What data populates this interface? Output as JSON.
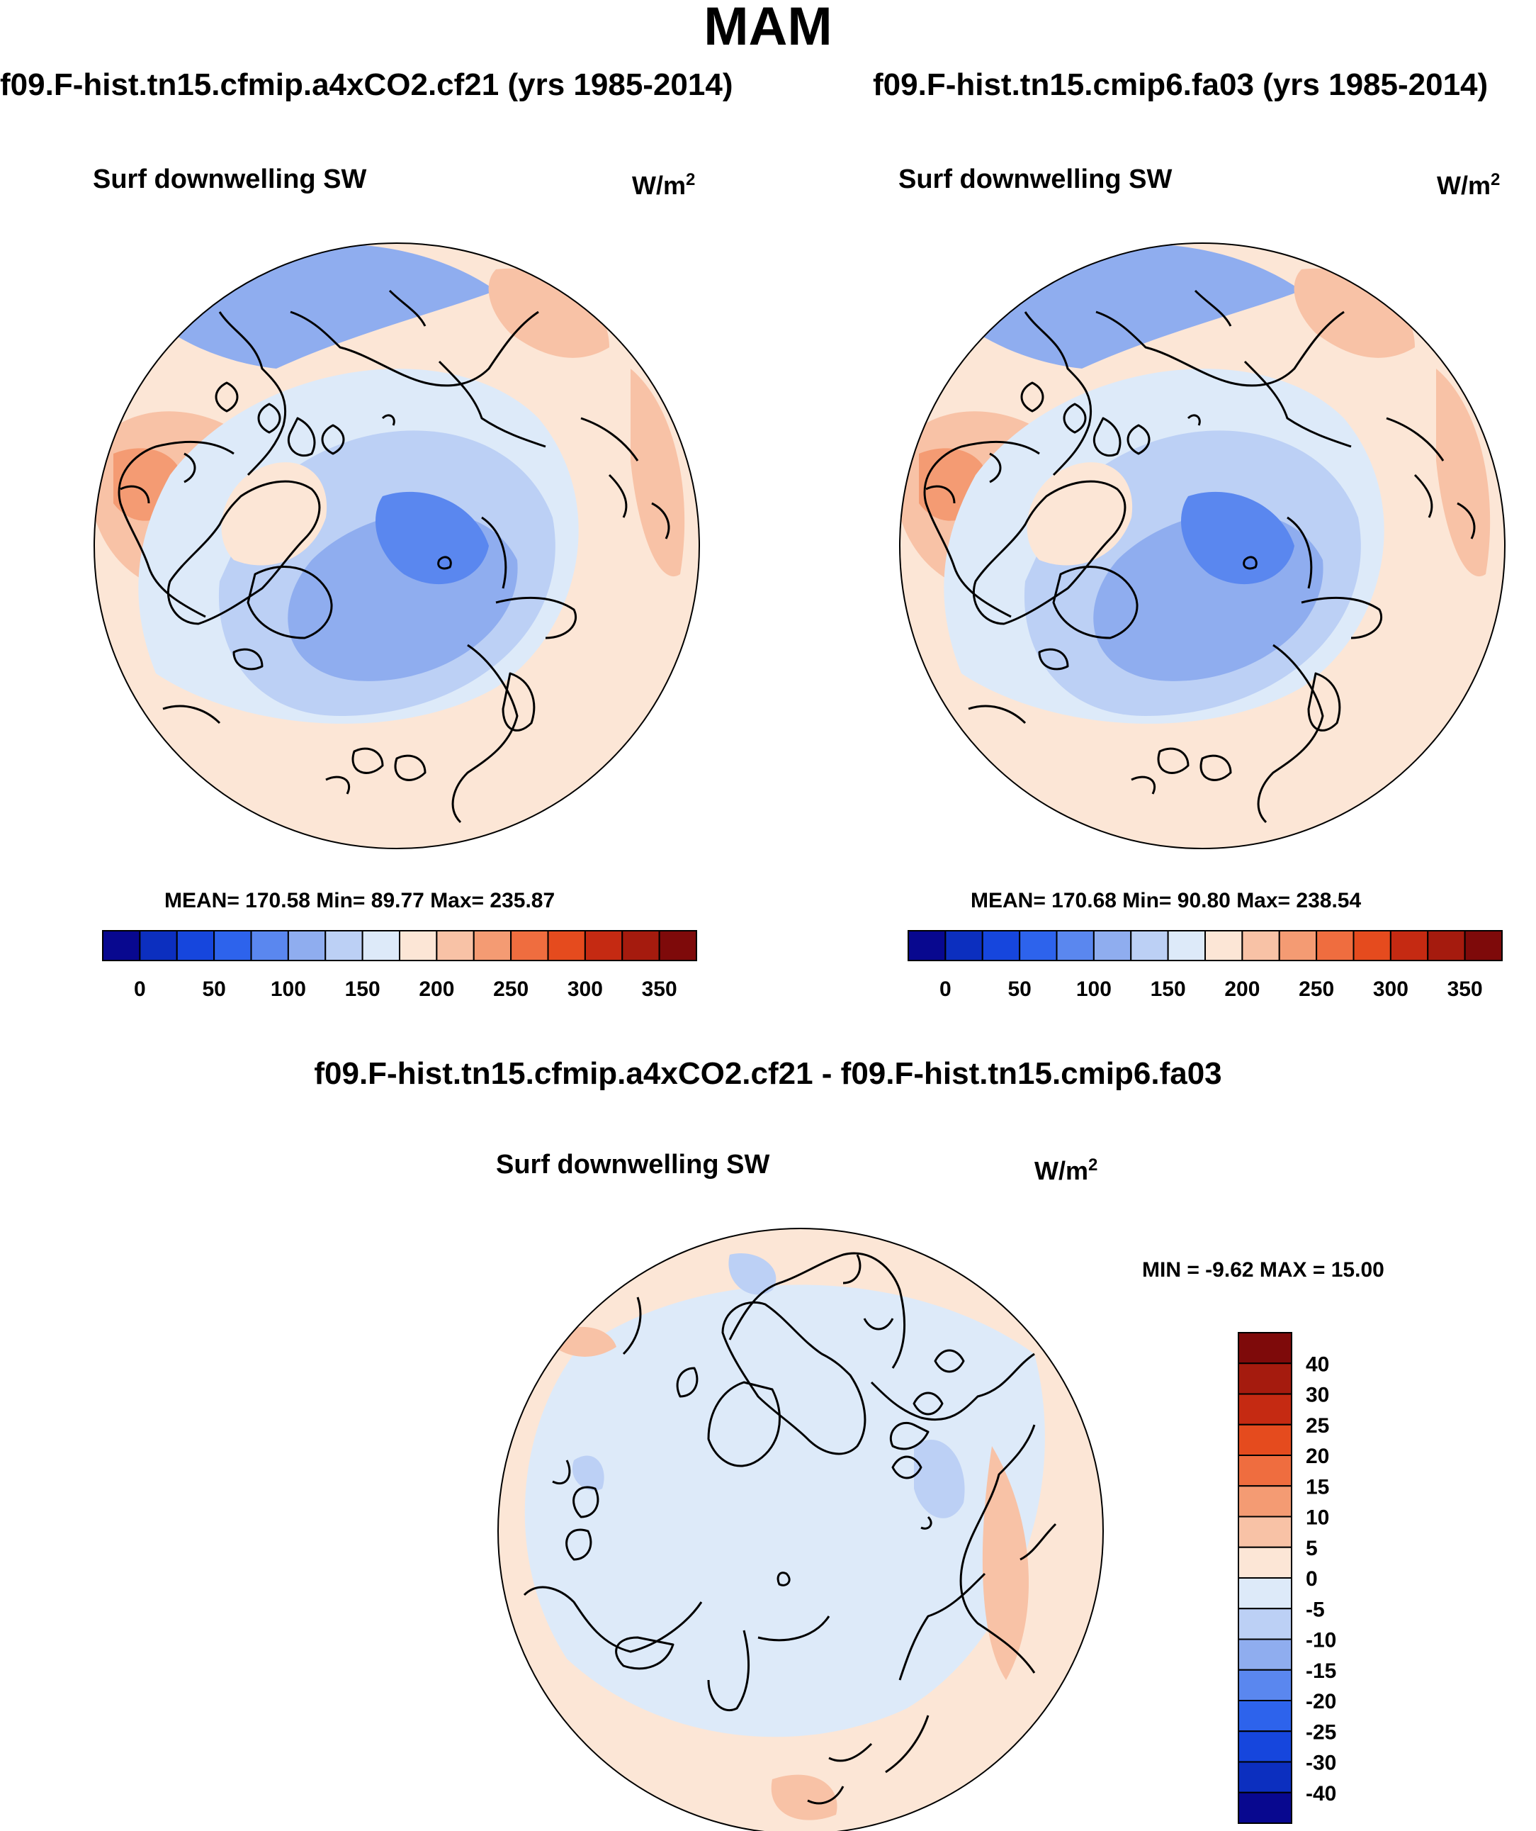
{
  "title": "MAM",
  "panels": [
    {
      "case_title": "f09.F-hist.tn15.cfmip.a4xCO2.cf21 (yrs 1985-2014)",
      "variable": "Surf downwelling SW",
      "units": "W/m",
      "units_exp": "2",
      "stats": "MEAN= 170.58  Min=  89.77  Max= 235.87"
    },
    {
      "case_title": "f09.F-hist.tn15.cmip6.fa03 (yrs 1985-2014)",
      "variable": "Surf downwelling SW",
      "units": "W/m",
      "units_exp": "2",
      "stats": "MEAN= 170.68  Min=  90.80  Max= 238.54"
    }
  ],
  "difference": {
    "title": "f09.F-hist.tn15.cfmip.a4xCO2.cf21 - f09.F-hist.tn15.cmip6.fa03",
    "variable": "Surf downwelling SW",
    "units": "W/m",
    "units_exp": "2",
    "stats": "MIN =  -9.62 MAX =  15.00"
  },
  "chart_data": [
    {
      "type": "heatmap",
      "projection": "north polar stereographic",
      "title": "f09.F-hist.tn15.cfmip.a4xCO2.cf21 (yrs 1985-2014)",
      "label": "Surf downwelling SW",
      "units": "W/m^2",
      "mean": 170.58,
      "min": 89.77,
      "max": 235.87,
      "colorbar_levels": [
        0,
        25,
        50,
        75,
        100,
        125,
        150,
        175,
        200,
        225,
        250,
        275,
        300,
        325,
        350
      ],
      "colorbar_ticks": [
        "0",
        "50",
        "100",
        "150",
        "200",
        "250",
        "300",
        "350"
      ],
      "colorbar_colors": [
        "#08088f",
        "#0c2fbf",
        "#1646dd",
        "#2d63ec",
        "#5a87ef",
        "#8fadef",
        "#bcd0f5",
        "#ddeaf9",
        "#fce6d6",
        "#f8c2a6",
        "#f49b73",
        "#ef6d3f",
        "#e54b1e",
        "#c52a12",
        "#a51b0e",
        "#7e0a0a"
      ],
      "colorbar_orientation": "horizontal"
    },
    {
      "type": "heatmap",
      "projection": "north polar stereographic",
      "title": "f09.F-hist.tn15.cmip6.fa03 (yrs 1985-2014)",
      "label": "Surf downwelling SW",
      "units": "W/m^2",
      "mean": 170.68,
      "min": 90.8,
      "max": 238.54,
      "colorbar_levels": [
        0,
        25,
        50,
        75,
        100,
        125,
        150,
        175,
        200,
        225,
        250,
        275,
        300,
        325,
        350
      ],
      "colorbar_ticks": [
        "0",
        "50",
        "100",
        "150",
        "200",
        "250",
        "300",
        "350"
      ],
      "colorbar_colors": [
        "#08088f",
        "#0c2fbf",
        "#1646dd",
        "#2d63ec",
        "#5a87ef",
        "#8fadef",
        "#bcd0f5",
        "#ddeaf9",
        "#fce6d6",
        "#f8c2a6",
        "#f49b73",
        "#ef6d3f",
        "#e54b1e",
        "#c52a12",
        "#a51b0e",
        "#7e0a0a"
      ],
      "colorbar_orientation": "horizontal"
    },
    {
      "type": "heatmap",
      "projection": "north polar stereographic",
      "title": "f09.F-hist.tn15.cfmip.a4xCO2.cf21 - f09.F-hist.tn15.cmip6.fa03",
      "label": "Surf downwelling SW",
      "units": "W/m^2",
      "min": -9.62,
      "max": 15.0,
      "colorbar_ticks": [
        "40",
        "30",
        "25",
        "20",
        "15",
        "10",
        "5",
        "0",
        "-5",
        "-10",
        "-15",
        "-20",
        "-25",
        "-30",
        "-40"
      ],
      "colorbar_colors": [
        "#7e0a0a",
        "#a51b0e",
        "#c52a12",
        "#e54b1e",
        "#ef6d3f",
        "#f49b73",
        "#f8c2a6",
        "#fce6d6",
        "#ddeaf9",
        "#bcd0f5",
        "#8fadef",
        "#5a87ef",
        "#2d63ec",
        "#1646dd",
        "#0c2fbf",
        "#08088f"
      ],
      "colorbar_orientation": "vertical"
    }
  ]
}
